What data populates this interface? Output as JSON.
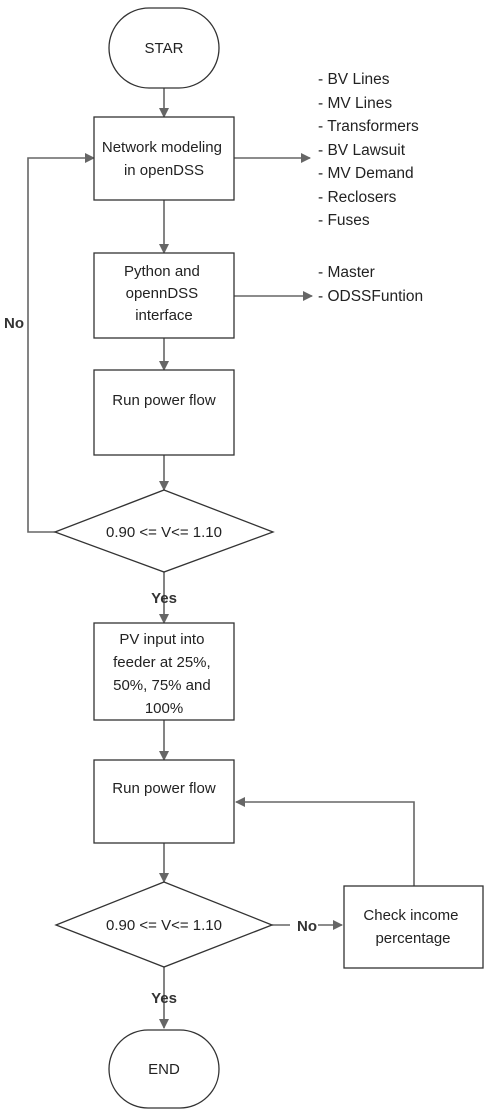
{
  "nodes": {
    "start": "STAR",
    "network": [
      "Network modeling",
      "in openDSS"
    ],
    "python": [
      "Python and",
      "opennDSS",
      "interface"
    ],
    "run1": "Run power flow",
    "cond1": "0.90 <= V<= 1.10",
    "pv": [
      "PV input into",
      "feeder at 25%,",
      "50%, 75% and",
      "100%"
    ],
    "run2": "Run power flow",
    "cond2": "0.90 <= V<= 1.10",
    "check": [
      "Check income",
      "percentage"
    ],
    "end": "END"
  },
  "edge_labels": {
    "no_loop": "No",
    "yes1": "Yes",
    "no2": "No",
    "yes2": "Yes"
  },
  "notes": {
    "network_items": [
      "- BV Lines",
      "- MV Lines",
      "- Transformers",
      "- BV Lawsuit",
      "- MV Demand",
      "- Reclosers",
      "- Fuses"
    ],
    "python_items": [
      "- Master",
      "- ODSSFuntion"
    ]
  },
  "colors": {
    "stroke": "#333333",
    "connector": "#666666"
  }
}
